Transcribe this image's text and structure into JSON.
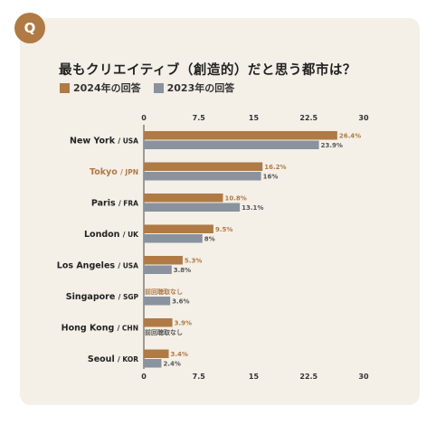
{
  "badge": "Q",
  "title": "最もクリエイティブ（創造的）だと思う都市は？",
  "colors": {
    "accent": "#b07a45",
    "secondary": "#8a929e",
    "background": "#f4efe7"
  },
  "chart_data": {
    "type": "bar",
    "orientation": "horizontal",
    "title": "最もクリエイティブ（創造的）だと思う都市は？",
    "xlim": [
      0,
      30
    ],
    "ticks": [
      "0",
      "7.5",
      "15",
      "22.5",
      "30"
    ],
    "tick_values": [
      0,
      7.5,
      15,
      22.5,
      30
    ],
    "legend_position": "top-left",
    "categories": [
      {
        "name": "New York",
        "code": "/ USA",
        "highlight": false
      },
      {
        "name": "Tokyo",
        "code": "/ JPN",
        "highlight": true
      },
      {
        "name": "Paris",
        "code": "/ FRA",
        "highlight": false
      },
      {
        "name": "London",
        "code": "/ UK",
        "highlight": false
      },
      {
        "name": "Los Angeles",
        "code": "/ USA",
        "highlight": false
      },
      {
        "name": "Singapore",
        "code": "/ SGP",
        "highlight": false
      },
      {
        "name": "Hong Kong",
        "code": "/ CHN",
        "highlight": false
      },
      {
        "name": "Seoul",
        "code": "/ KOR",
        "highlight": false
      }
    ],
    "series": [
      {
        "name": "2024年の回答",
        "color": "#b07a45",
        "values": [
          26.4,
          16.2,
          10.8,
          9.5,
          5.3,
          null,
          3.9,
          3.4
        ],
        "labels": [
          "26.4%",
          "16.2%",
          "10.8%",
          "9.5%",
          "5.3%",
          "前回聴取なし",
          "3.9%",
          "3.4%"
        ]
      },
      {
        "name": "2023年の回答",
        "color": "#8a929e",
        "values": [
          23.9,
          16,
          13.1,
          8,
          3.8,
          3.6,
          null,
          2.4
        ],
        "labels": [
          "23.9%",
          "16%",
          "13.1%",
          "8%",
          "3.8%",
          "3.6%",
          "前回聴取なし",
          "2.4%"
        ]
      }
    ]
  }
}
